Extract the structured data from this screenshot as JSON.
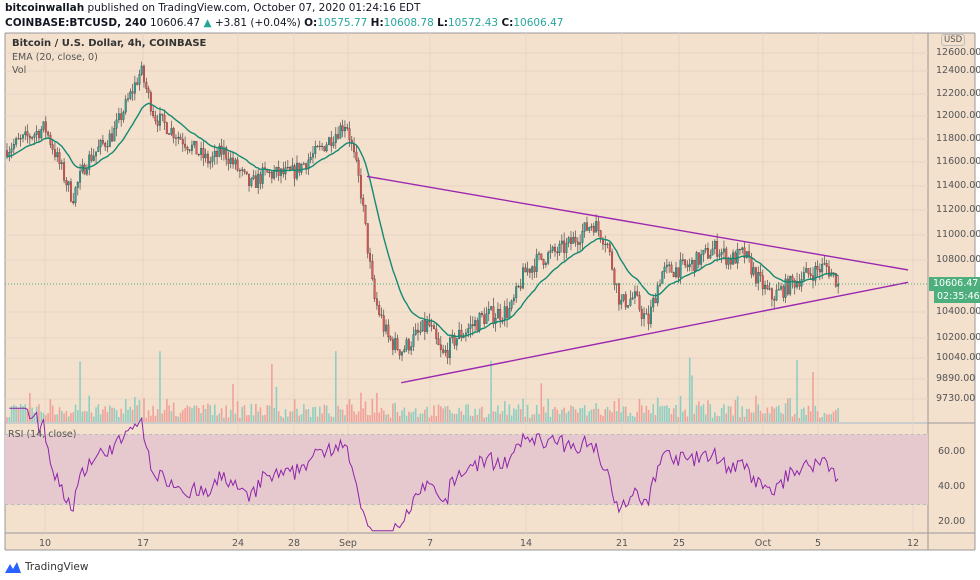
{
  "header": {
    "author": "bitcoinwallah",
    "published": "published on TradingView.com, October 07, 2020 01:24:16 EDT",
    "symbol": "COINBASE:BTCUSD, 240",
    "last": "10606.47",
    "change": "+3.81 (+0.04%)",
    "o_label": "O:",
    "o": "10575.77",
    "h_label": "H:",
    "h": "10608.78",
    "l_label": "L:",
    "l": "10572.43",
    "c_label": "C:",
    "c": "10606.47"
  },
  "legend": {
    "title": "Bitcoin / U.S. Dollar, 4h, COINBASE",
    "ema": "EMA (20, close, 0)",
    "vol": "Vol",
    "rsi": "RSI (14, close)"
  },
  "price_axis": {
    "currency": "USD",
    "ticks": [
      "12600.00",
      "12400.00",
      "12200.00",
      "12000.00",
      "11800.00",
      "11600.00",
      "11400.00",
      "11200.00",
      "11000.00",
      "10800.00",
      "10400.00",
      "10200.00",
      "10040.00",
      "9890.00",
      "9730.00"
    ],
    "last_price": "10606.47",
    "countdown": "02:35:46"
  },
  "rsi_axis": {
    "ticks": [
      "60.00",
      "40.00",
      "20.00"
    ]
  },
  "time_axis": {
    "ticks": [
      "10",
      "17",
      "24",
      "28",
      "Sep",
      "7",
      "14",
      "21",
      "25",
      "Oct",
      "5",
      "12"
    ]
  },
  "brand": "TradingView",
  "colors": {
    "up": "#26a69a",
    "down": "#ef5350",
    "ema": "#138a72",
    "trendline": "#9c27b0",
    "rsi": "#8e24aa",
    "background": "#f3e0cd"
  },
  "chart_data": {
    "type": "candlestick",
    "interval": "4h",
    "price_path": [
      [
        "Aug 7",
        11700
      ],
      [
        "Aug 10",
        11900
      ],
      [
        "Aug 12",
        11300
      ],
      [
        "Aug 13",
        11600
      ],
      [
        "Aug 15",
        11850
      ],
      [
        "Aug 17",
        12400
      ],
      [
        "Aug 18",
        12000
      ],
      [
        "Aug 20",
        11800
      ],
      [
        "Aug 22",
        11600
      ],
      [
        "Aug 23",
        11700
      ],
      [
        "Aug 25",
        11400
      ],
      [
        "Aug 26",
        11500
      ],
      [
        "Aug 28",
        11500
      ],
      [
        "Aug 30",
        11700
      ],
      [
        "Sep 1",
        11950
      ],
      [
        "Sep 2",
        11400
      ],
      [
        "Sep 3",
        10500
      ],
      [
        "Sep 4",
        10200
      ],
      [
        "Sep 5",
        10100
      ],
      [
        "Sep 6",
        10200
      ],
      [
        "Sep 7",
        10300
      ],
      [
        "Sep 8",
        10050
      ],
      [
        "Sep 9",
        10200
      ],
      [
        "Sep 11",
        10350
      ],
      [
        "Sep 13",
        10400
      ],
      [
        "Sep 14",
        10700
      ],
      [
        "Sep 15",
        10800
      ],
      [
        "Sep 17",
        10900
      ],
      [
        "Sep 19",
        11100
      ],
      [
        "Sep 20",
        10950
      ],
      [
        "Sep 21",
        10450
      ],
      [
        "Sep 22",
        10500
      ],
      [
        "Sep 23",
        10300
      ],
      [
        "Sep 24",
        10700
      ],
      [
        "Sep 26",
        10750
      ],
      [
        "Sep 28",
        10900
      ],
      [
        "Sep 29",
        10800
      ],
      [
        "Sep 30",
        10850
      ],
      [
        "Oct 1",
        10650
      ],
      [
        "Oct 2",
        10500
      ],
      [
        "Oct 4",
        10650
      ],
      [
        "Oct 6",
        10750
      ],
      [
        "Oct 7",
        10606
      ]
    ],
    "trendlines": [
      {
        "from": [
          "Sep 2.5",
          11480
        ],
        "to": [
          "Oct 12",
          10720
        ]
      },
      {
        "from": [
          "Sep 5",
          9860
        ],
        "to": [
          "Oct 12",
          10620
        ]
      }
    ],
    "indicators": [
      "EMA 20",
      "Volume",
      "RSI 14"
    ],
    "rsi_bands": [
      30,
      70
    ]
  }
}
